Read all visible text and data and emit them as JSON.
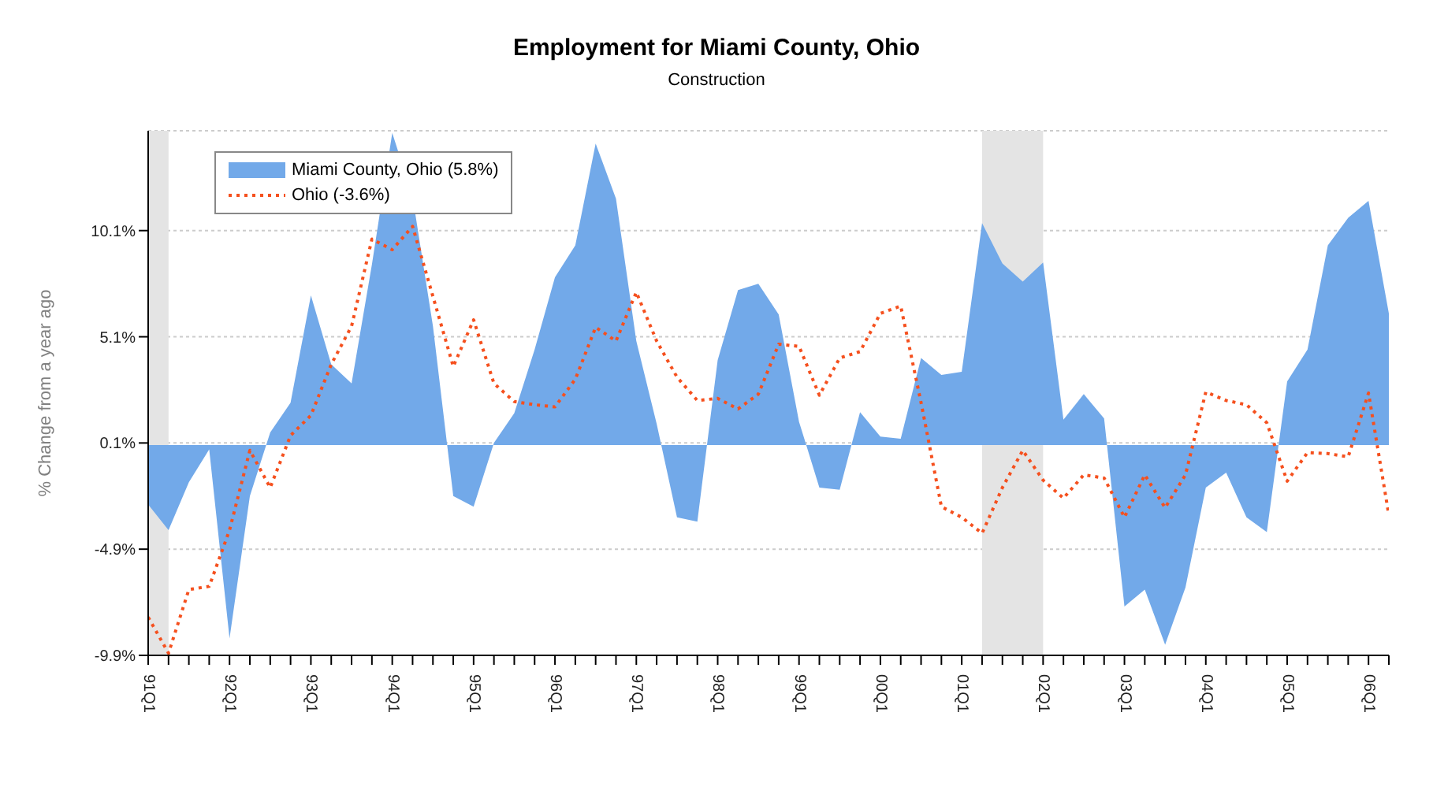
{
  "chart_data": {
    "type": "area",
    "title": "Employment for Miami County, Ohio",
    "subtitle": "Construction",
    "ylabel": "% Change from a year ago",
    "categories": [
      "91Q1",
      null,
      null,
      null,
      "92Q1",
      null,
      null,
      null,
      "93Q1",
      null,
      null,
      null,
      "94Q1",
      null,
      null,
      null,
      "95Q1",
      null,
      null,
      null,
      "96Q1",
      null,
      null,
      null,
      "97Q1",
      null,
      null,
      null,
      "98Q1",
      null,
      null,
      null,
      "99Q1",
      null,
      null,
      null,
      "00Q1",
      null,
      null,
      null,
      "01Q1",
      null,
      null,
      null,
      "02Q1",
      null,
      null,
      null,
      "03Q1",
      null,
      null,
      null,
      "04Q1",
      null,
      null,
      null,
      "05Q1",
      null,
      null,
      null,
      "06Q1",
      null
    ],
    "series": [
      {
        "name": "Miami County, Ohio (5.8%)",
        "color": "#72a9e9",
        "values": [
          -2.8,
          -4.0,
          -1.75,
          -0.2,
          -9.1,
          -2.4,
          0.6,
          2.0,
          7.05,
          3.8,
          2.9,
          8.5,
          14.7,
          11.7,
          5.6,
          -2.4,
          -2.9,
          0.1,
          1.5,
          4.5,
          7.9,
          9.4,
          14.2,
          11.6,
          4.9,
          1.0,
          -3.4,
          -3.6,
          4.0,
          7.3,
          7.6,
          6.15,
          1.1,
          -2.0,
          -2.1,
          1.55,
          0.4,
          0.3,
          4.1,
          3.3,
          3.45,
          10.45,
          8.55,
          7.7,
          8.6,
          1.2,
          2.4,
          1.25,
          -7.6,
          -6.8,
          -9.4,
          -6.7,
          -2.0,
          -1.3,
          -3.4,
          -4.1,
          3.0,
          4.5,
          9.4,
          10.7,
          11.5,
          6.2
        ]
      },
      {
        "name": "Ohio (-3.6%)",
        "type": "line",
        "color": "#f5501e",
        "line_style": "dotted",
        "values": [
          -8.1,
          -9.8,
          -6.8,
          -6.65,
          -4.0,
          -0.25,
          -2.0,
          0.45,
          1.4,
          3.8,
          5.6,
          9.7,
          9.2,
          10.3,
          7.0,
          3.7,
          5.9,
          2.9,
          2.05,
          1.9,
          1.8,
          3.1,
          5.55,
          4.9,
          7.2,
          4.9,
          3.2,
          2.1,
          2.2,
          1.7,
          2.4,
          4.75,
          4.65,
          2.35,
          4.1,
          4.4,
          6.2,
          6.55,
          2.0,
          -2.9,
          -3.4,
          -4.15,
          -2.0,
          -0.25,
          -1.65,
          -2.5,
          -1.4,
          -1.55,
          -3.4,
          -1.4,
          -2.95,
          -1.4,
          2.5,
          2.1,
          1.9,
          1.05,
          -1.7,
          -0.35,
          -0.4,
          -0.55,
          2.45,
          -3.3
        ]
      }
    ],
    "ylim": [
      -9.9,
      14.8
    ],
    "yticks": [
      {
        "value": -9.9,
        "label": "-9.9%"
      },
      {
        "value": -4.9,
        "label": "-4.9%"
      },
      {
        "value": 0.1,
        "label": "0.1%"
      },
      {
        "value": 5.1,
        "label": "5.1%"
      },
      {
        "value": 10.1,
        "label": "10.1%"
      }
    ],
    "grid": "y",
    "legend": "top left",
    "marker": "none"
  }
}
